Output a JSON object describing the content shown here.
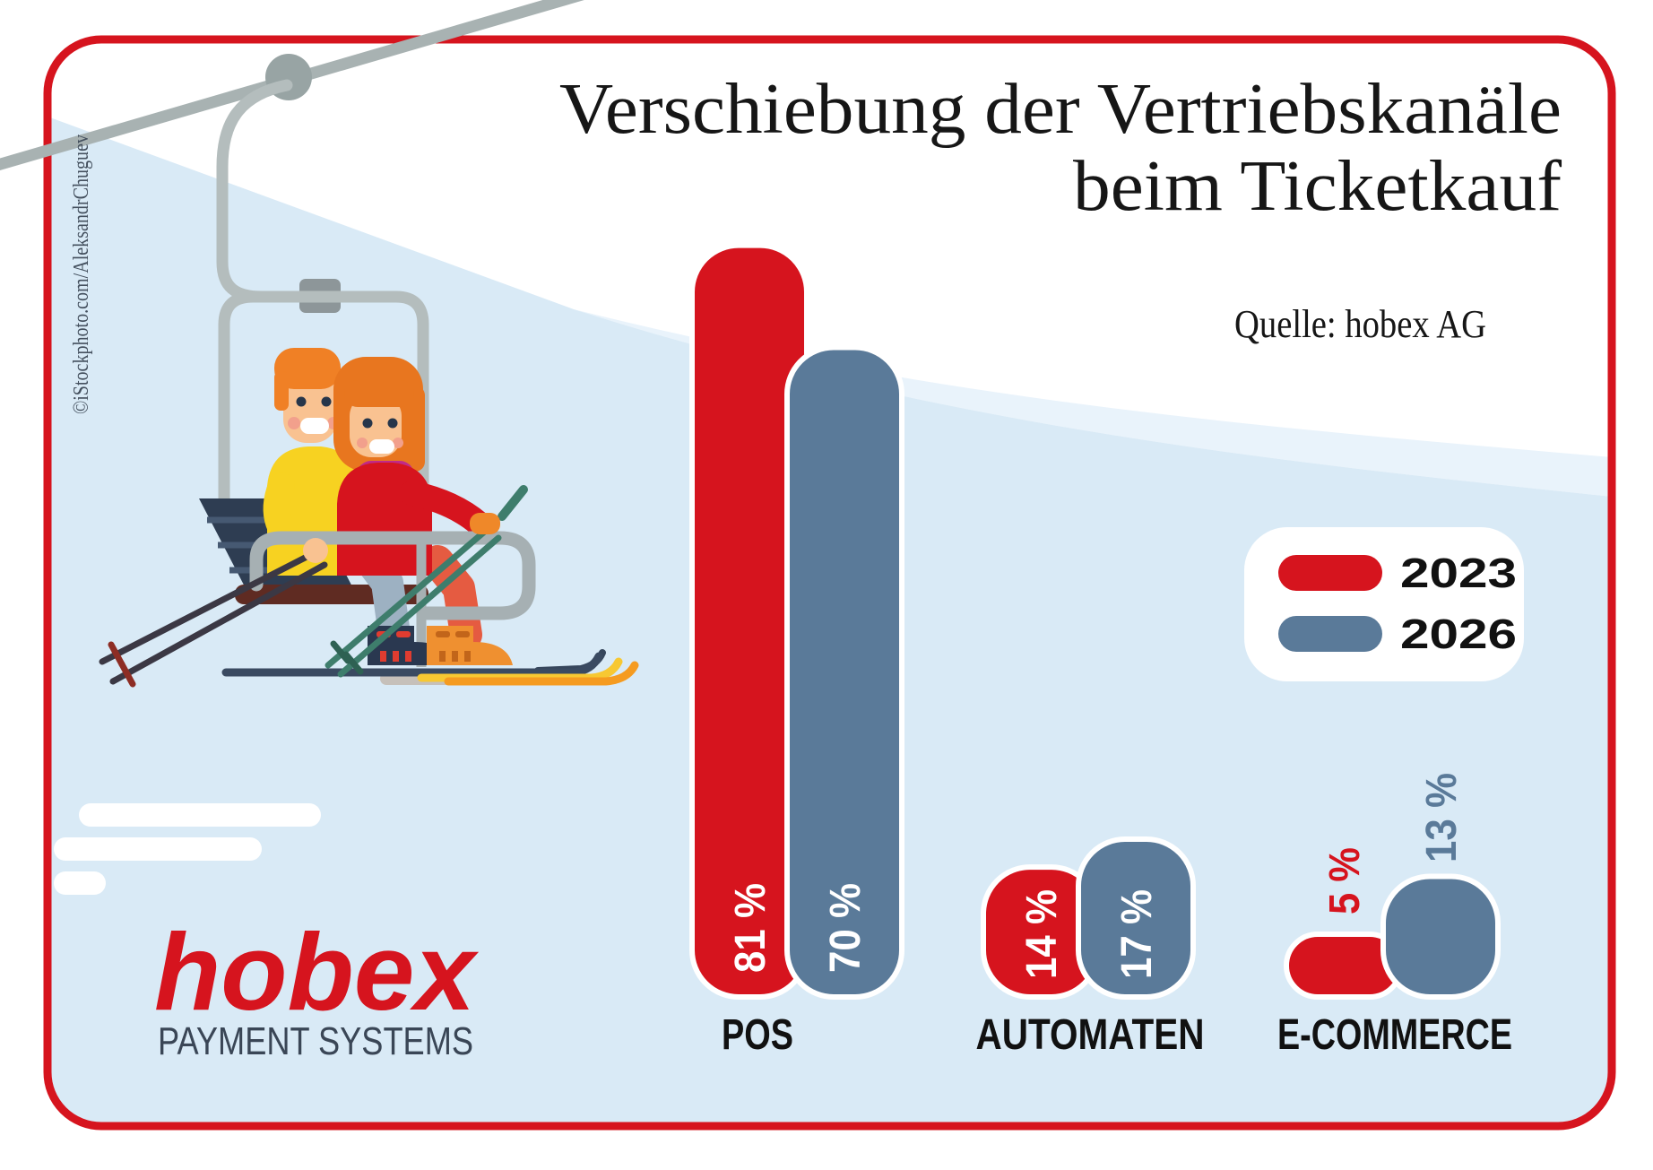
{
  "infographic": {
    "title_line1": "Verschiebung der Vertriebskanäle",
    "title_line2": "beim Ticketkauf",
    "source": "Quelle: hobex AG",
    "copyright": "©iStockphoto.com/AleksandrChuguev",
    "logo": {
      "name": "hobex",
      "subtitle": "PAYMENT SYSTEMS"
    },
    "legend": {
      "items": [
        {
          "label": "2023",
          "color": "#d6141e"
        },
        {
          "label": "2026",
          "color": "#5a7a99"
        }
      ]
    },
    "colors": {
      "accent_red": "#d6141e",
      "slate_blue": "#5a7a99",
      "background_blue": "#d9eaf6",
      "dark_text": "#111111"
    }
  },
  "chart_data": {
    "type": "bar",
    "title": "Verschiebung der Vertriebskanäle beim Ticketkauf",
    "subtitle": "",
    "source": "Quelle: hobex AG",
    "unit": "%",
    "ylim": [
      0,
      100
    ],
    "grid": false,
    "legend_position": "middle-right",
    "categories": [
      "POS",
      "AUTOMATEN",
      "E-COMMERCE"
    ],
    "series": [
      {
        "name": "2023",
        "color": "#d6141e",
        "values": [
          81,
          14,
          5
        ],
        "labels": [
          "81 %",
          "14 %",
          "5 %"
        ]
      },
      {
        "name": "2026",
        "color": "#5a7a99",
        "values": [
          70,
          17,
          13
        ],
        "labels": [
          "70 %",
          "17 %",
          "13 %"
        ]
      }
    ]
  }
}
